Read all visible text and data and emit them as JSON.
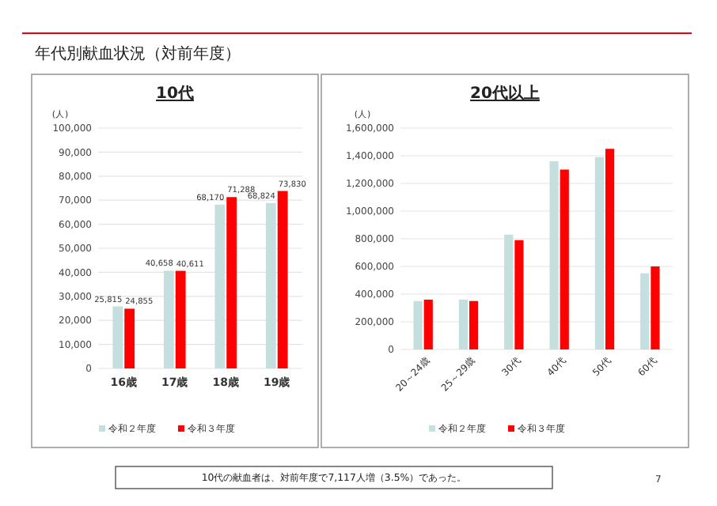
{
  "chart_data": [
    {
      "type": "bar",
      "title": "10代",
      "ylabel": "(人)",
      "categories": [
        "16歳",
        "17歳",
        "18歳",
        "19歳"
      ],
      "series": [
        {
          "name": "令和２年度",
          "color": "#c5dfdf",
          "values": [
            25815,
            40658,
            68170,
            68824
          ],
          "value_labels": [
            "25,815",
            "40,658",
            "68,170",
            "68,824"
          ]
        },
        {
          "name": "令和３年度",
          "color": "#ff0000",
          "values": [
            24855,
            40611,
            71288,
            73830
          ],
          "value_labels": [
            "24,855",
            "40,611",
            "71,288",
            "73,830"
          ]
        }
      ],
      "ylim": [
        0,
        100000
      ],
      "yticks": [
        {
          "value": 0,
          "label": "0"
        },
        {
          "value": 10000,
          "label": "10,000"
        },
        {
          "value": 20000,
          "label": "20,000"
        },
        {
          "value": 30000,
          "label": "30,000"
        },
        {
          "value": 40000,
          "label": "40,000"
        },
        {
          "value": 50000,
          "label": "50,000"
        },
        {
          "value": 60000,
          "label": "60,000"
        },
        {
          "value": 70000,
          "label": "70,000"
        },
        {
          "value": 80000,
          "label": "80,000"
        },
        {
          "value": 90000,
          "label": "90,000"
        },
        {
          "value": 100000,
          "label": "100,000"
        }
      ],
      "grid": "y",
      "legend": "bottom",
      "annotations": [
        "年代別献血状況（対前年度）",
        "10代の献血者は、対前年度で7,117人増（3.5%）であった。"
      ]
    },
    {
      "type": "bar",
      "title": "20代以上",
      "ylabel": "(人)",
      "categories": [
        "20～24歳",
        "25～29歳",
        "30代",
        "40代",
        "50代",
        "60代"
      ],
      "series": [
        {
          "name": "令和２年度",
          "color": "#c5dfdf",
          "values": [
            350000,
            360000,
            830000,
            1360000,
            1390000,
            550000
          ]
        },
        {
          "name": "令和３年度",
          "color": "#ff0000",
          "values": [
            360000,
            350000,
            790000,
            1300000,
            1450000,
            600000
          ]
        }
      ],
      "ylim": [
        0,
        1600000
      ],
      "yticks": [
        {
          "value": 0,
          "label": "0"
        },
        {
          "value": 200000,
          "label": "200,000"
        },
        {
          "value": 400000,
          "label": "400,000"
        },
        {
          "value": 600000,
          "label": "600,000"
        },
        {
          "value": 800000,
          "label": "800,000"
        },
        {
          "value": 1000000,
          "label": "1,000,000"
        },
        {
          "value": 1200000,
          "label": "1,200,000"
        },
        {
          "value": 1400000,
          "label": "1,400,000"
        },
        {
          "value": 1600000,
          "label": "1,600,000"
        }
      ],
      "grid": "y",
      "legend": "bottom",
      "annotations": [
        "7"
      ]
    }
  ]
}
